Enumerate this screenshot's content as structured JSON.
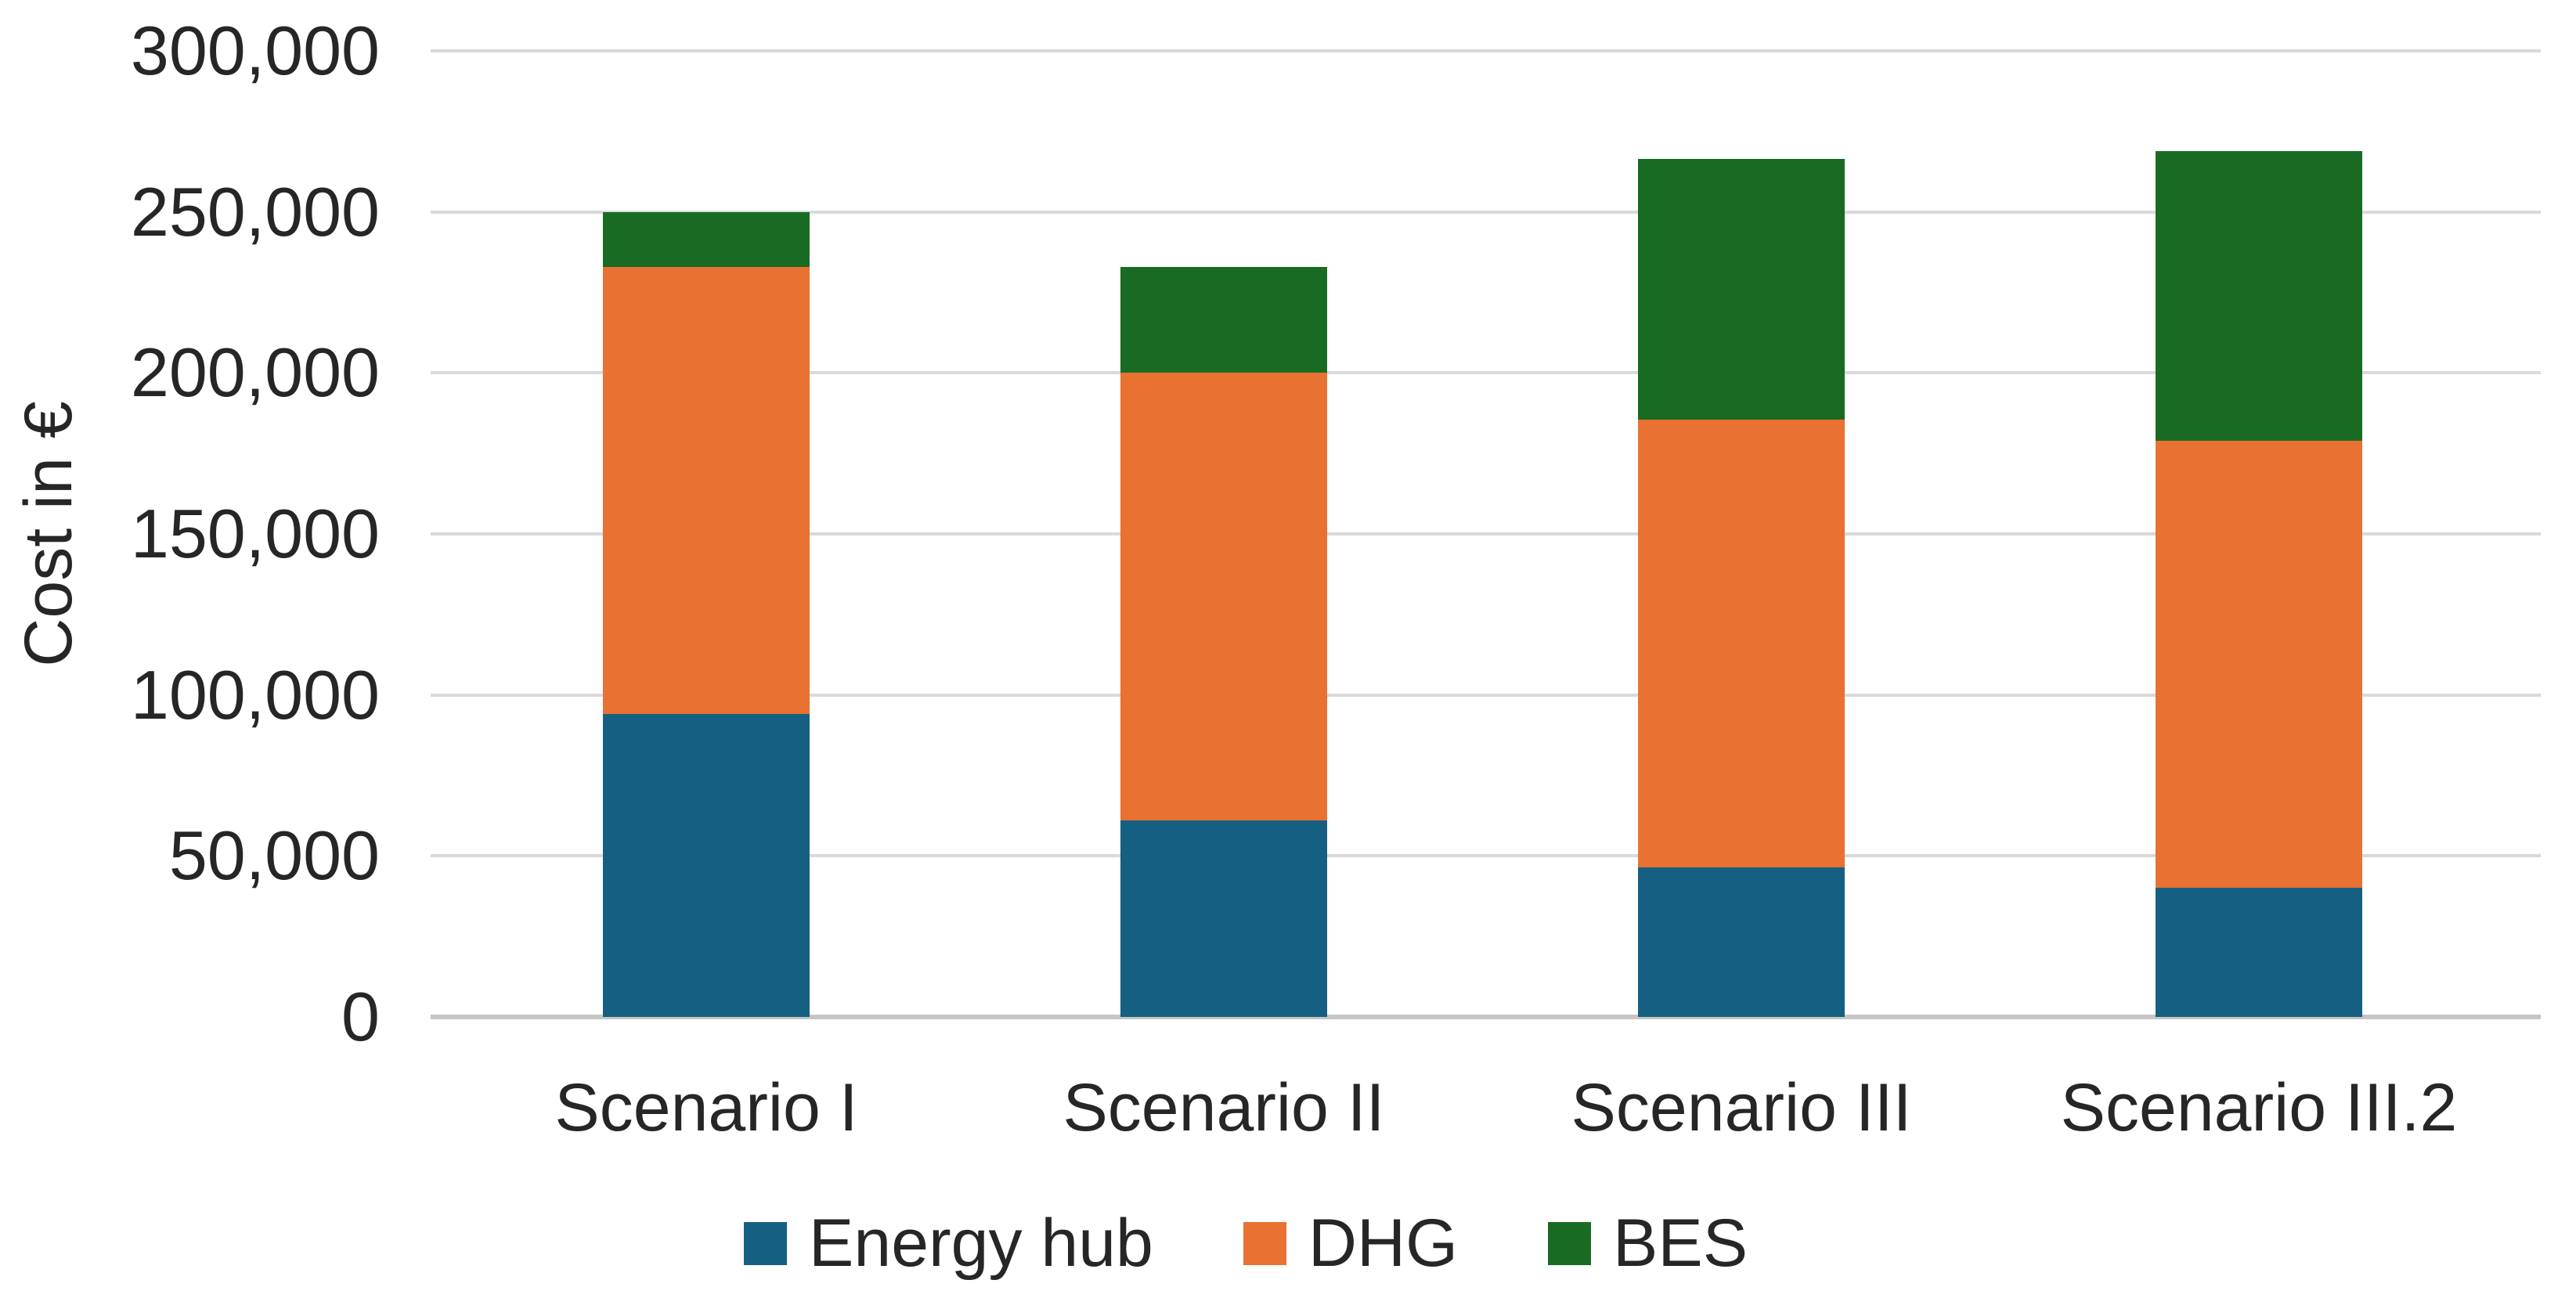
{
  "chart_data": {
    "type": "bar",
    "stacked": true,
    "title": "",
    "xlabel": "",
    "ylabel": "Cost in €",
    "categories": [
      "Scenario I",
      "Scenario II",
      "Scenario III",
      "Scenario III.2"
    ],
    "series": [
      {
        "name": "Energy hub",
        "color": "#156082",
        "values": [
          94000,
          61000,
          46500,
          40000
        ]
      },
      {
        "name": "DHG",
        "color": "#E97132",
        "values": [
          139000,
          139000,
          139000,
          139000
        ]
      },
      {
        "name": "BES",
        "color": "#196B24",
        "values": [
          17000,
          33000,
          81000,
          90000
        ]
      }
    ],
    "stacked_totals": [
      250000,
      233000,
      266500,
      269000
    ],
    "ylim": [
      0,
      300000
    ],
    "ytick_step": 50000,
    "yticks": [
      "0",
      "50,000",
      "100,000",
      "150,000",
      "200,000",
      "250,000",
      "300,000"
    ],
    "grid": true,
    "legend_position": "bottom",
    "colors": {
      "gridline": "#D9D9D9",
      "axis_line": "#C6C6C6",
      "text": "#262626",
      "background": "#FFFFFF"
    }
  }
}
